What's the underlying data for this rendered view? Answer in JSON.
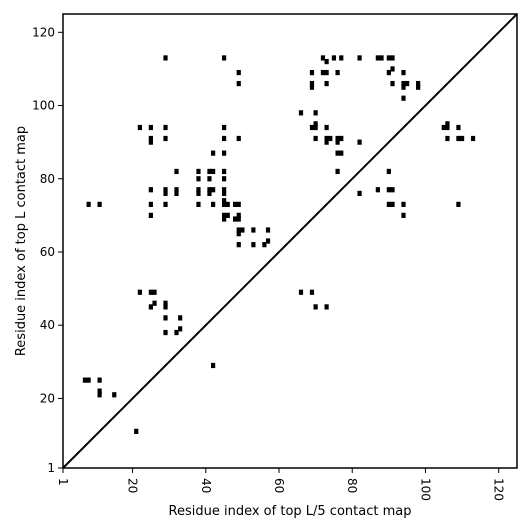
{
  "chart_data": {
    "type": "scatter",
    "xlabel": "Residue index of top L/5 contact map",
    "ylabel": "Residue index of top L contact map",
    "xlim": [
      1,
      125
    ],
    "ylim": [
      1,
      125
    ],
    "x_ticks": [
      1,
      20,
      40,
      60,
      80,
      100,
      120
    ],
    "y_ticks": [
      1,
      20,
      40,
      60,
      80,
      100,
      120
    ],
    "x_tick_rotation_deg": -90,
    "grid": false,
    "legend": "none",
    "diagonal_line": {
      "from": [
        1,
        1
      ],
      "to": [
        125,
        125
      ]
    },
    "marker": {
      "shape": "square",
      "color": "#000000"
    },
    "series": [
      {
        "points": [
          [
            29,
            113
          ],
          [
            45,
            113
          ],
          [
            72,
            113
          ],
          [
            73,
            112
          ],
          [
            75,
            113
          ],
          [
            77,
            113
          ],
          [
            82,
            113
          ],
          [
            87,
            113
          ],
          [
            88,
            113
          ],
          [
            90,
            113
          ],
          [
            91,
            113
          ],
          [
            49,
            109
          ],
          [
            69,
            109
          ],
          [
            72,
            109
          ],
          [
            73,
            109
          ],
          [
            76,
            109
          ],
          [
            90,
            109
          ],
          [
            91,
            110
          ],
          [
            94,
            109
          ],
          [
            49,
            106
          ],
          [
            69,
            106
          ],
          [
            69,
            105
          ],
          [
            73,
            106
          ],
          [
            91,
            106
          ],
          [
            94,
            106
          ],
          [
            94,
            105
          ],
          [
            95,
            106
          ],
          [
            98,
            106
          ],
          [
            98,
            105
          ],
          [
            94,
            102
          ],
          [
            66,
            98
          ],
          [
            70,
            98
          ],
          [
            22,
            94
          ],
          [
            25,
            94
          ],
          [
            29,
            94
          ],
          [
            45,
            94
          ],
          [
            69,
            94
          ],
          [
            70,
            95
          ],
          [
            70,
            94
          ],
          [
            73,
            94
          ],
          [
            105,
            94
          ],
          [
            106,
            95
          ],
          [
            106,
            94
          ],
          [
            109,
            94
          ],
          [
            25,
            91
          ],
          [
            25,
            90
          ],
          [
            29,
            91
          ],
          [
            45,
            91
          ],
          [
            49,
            91
          ],
          [
            70,
            91
          ],
          [
            73,
            91
          ],
          [
            73,
            90
          ],
          [
            74,
            91
          ],
          [
            76,
            91
          ],
          [
            76,
            90
          ],
          [
            77,
            91
          ],
          [
            82,
            90
          ],
          [
            106,
            91
          ],
          [
            109,
            91
          ],
          [
            110,
            91
          ],
          [
            113,
            91
          ],
          [
            42,
            87
          ],
          [
            45,
            87
          ],
          [
            76,
            87
          ],
          [
            77,
            87
          ],
          [
            32,
            82
          ],
          [
            38,
            82
          ],
          [
            41,
            82
          ],
          [
            42,
            82
          ],
          [
            45,
            82
          ],
          [
            76,
            82
          ],
          [
            90,
            82
          ],
          [
            38,
            80
          ],
          [
            41,
            80
          ],
          [
            45,
            80
          ],
          [
            25,
            77
          ],
          [
            29,
            77
          ],
          [
            29,
            76
          ],
          [
            32,
            77
          ],
          [
            32,
            76
          ],
          [
            38,
            77
          ],
          [
            38,
            76
          ],
          [
            41,
            77
          ],
          [
            41,
            76
          ],
          [
            42,
            77
          ],
          [
            45,
            77
          ],
          [
            45,
            76
          ],
          [
            82,
            76
          ],
          [
            87,
            77
          ],
          [
            90,
            77
          ],
          [
            91,
            77
          ],
          [
            8,
            73
          ],
          [
            11,
            73
          ],
          [
            25,
            73
          ],
          [
            29,
            73
          ],
          [
            38,
            73
          ],
          [
            42,
            73
          ],
          [
            45,
            74
          ],
          [
            45,
            73
          ],
          [
            46,
            73
          ],
          [
            48,
            73
          ],
          [
            49,
            73
          ],
          [
            90,
            73
          ],
          [
            91,
            73
          ],
          [
            94,
            73
          ],
          [
            109,
            73
          ],
          [
            25,
            70
          ],
          [
            45,
            70
          ],
          [
            45,
            69
          ],
          [
            46,
            70
          ],
          [
            48,
            69
          ],
          [
            49,
            70
          ],
          [
            49,
            69
          ],
          [
            94,
            70
          ],
          [
            49,
            66
          ],
          [
            49,
            65
          ],
          [
            50,
            66
          ],
          [
            53,
            66
          ],
          [
            57,
            66
          ],
          [
            49,
            62
          ],
          [
            53,
            62
          ],
          [
            56,
            62
          ],
          [
            57,
            63
          ],
          [
            22,
            49
          ],
          [
            25,
            49
          ],
          [
            26,
            49
          ],
          [
            66,
            49
          ],
          [
            69,
            49
          ],
          [
            26,
            46
          ],
          [
            29,
            46
          ],
          [
            29,
            45
          ],
          [
            25,
            45
          ],
          [
            70,
            45
          ],
          [
            73,
            45
          ],
          [
            29,
            42
          ],
          [
            33,
            42
          ],
          [
            29,
            38
          ],
          [
            32,
            38
          ],
          [
            33,
            39
          ],
          [
            42,
            29
          ],
          [
            7,
            25
          ],
          [
            8,
            25
          ],
          [
            11,
            25
          ],
          [
            11,
            22
          ],
          [
            11,
            21
          ],
          [
            15,
            21
          ],
          [
            21,
            11
          ]
        ]
      }
    ]
  }
}
